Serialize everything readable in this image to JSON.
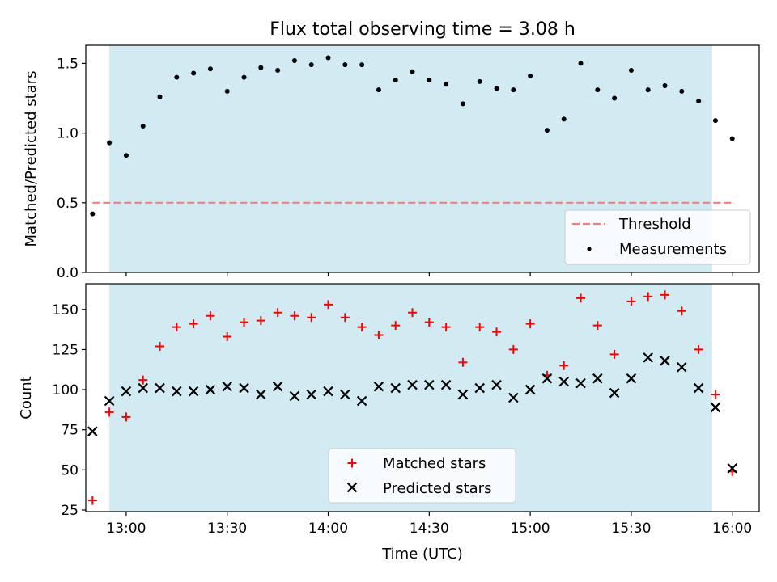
{
  "figure": {
    "title": "Flux total observing time = 3.08 h",
    "xlabel": "Time (UTC)"
  },
  "colors": {
    "shade": "#add8e6",
    "threshold": "#f08080",
    "matched": "#ff0000",
    "predicted": "#000000",
    "measurement": "#000000"
  },
  "chart_data": [
    {
      "type": "scatter",
      "title": "Flux total observing time = 3.08 h",
      "xlabel": "",
      "ylabel": "Matched/Predicted stars",
      "xlim": [
        "12:48",
        "16:08"
      ],
      "ylim": [
        0,
        1.63
      ],
      "yticks": [
        0.0,
        0.5,
        1.0,
        1.5
      ],
      "ytick_labels": [
        "0.0",
        "0.5",
        "1.0",
        "1.5"
      ],
      "xticks": [
        "13:00",
        "13:30",
        "14:00",
        "14:30",
        "15:00",
        "15:30",
        "16:00"
      ],
      "shaded_span": [
        "12:55",
        "15:54"
      ],
      "grid": false,
      "legend_position": "lower right",
      "threshold": {
        "name": "Threshold",
        "y": 0.5,
        "x": [
          "12:50",
          "16:00"
        ]
      },
      "series": [
        {
          "name": "Measurements",
          "x": [
            "12:50",
            "12:55",
            "13:00",
            "13:05",
            "13:10",
            "13:15",
            "13:20",
            "13:25",
            "13:30",
            "13:35",
            "13:40",
            "13:45",
            "13:50",
            "13:55",
            "14:00",
            "14:05",
            "14:10",
            "14:15",
            "14:20",
            "14:25",
            "14:30",
            "14:35",
            "14:40",
            "14:45",
            "14:50",
            "14:55",
            "15:00",
            "15:05",
            "15:10",
            "15:15",
            "15:20",
            "15:25",
            "15:30",
            "15:35",
            "15:40",
            "15:45",
            "15:50",
            "15:55",
            "16:00"
          ],
          "y": [
            0.42,
            0.93,
            0.84,
            1.05,
            1.26,
            1.4,
            1.43,
            1.46,
            1.3,
            1.4,
            1.47,
            1.45,
            1.52,
            1.49,
            1.54,
            1.49,
            1.49,
            1.31,
            1.38,
            1.44,
            1.38,
            1.35,
            1.21,
            1.37,
            1.32,
            1.31,
            1.41,
            1.02,
            1.1,
            1.5,
            1.31,
            1.25,
            1.45,
            1.31,
            1.34,
            1.3,
            1.23,
            1.09,
            0.96
          ]
        }
      ]
    },
    {
      "type": "scatter",
      "title": "",
      "xlabel": "Time (UTC)",
      "ylabel": "Count",
      "xlim": [
        "12:48",
        "16:08"
      ],
      "ylim": [
        24,
        166
      ],
      "yticks": [
        25,
        50,
        75,
        100,
        125,
        150
      ],
      "ytick_labels": [
        "25",
        "50",
        "75",
        "100",
        "125",
        "150"
      ],
      "xticks": [
        "13:00",
        "13:30",
        "14:00",
        "14:30",
        "15:00",
        "15:30",
        "16:00"
      ],
      "shaded_span": [
        "12:55",
        "15:54"
      ],
      "grid": false,
      "legend_position": "lower center",
      "series": [
        {
          "name": "Matched stars",
          "marker": "+",
          "x": [
            "12:50",
            "12:55",
            "13:00",
            "13:05",
            "13:10",
            "13:15",
            "13:20",
            "13:25",
            "13:30",
            "13:35",
            "13:40",
            "13:45",
            "13:50",
            "13:55",
            "14:00",
            "14:05",
            "14:10",
            "14:15",
            "14:20",
            "14:25",
            "14:30",
            "14:35",
            "14:40",
            "14:45",
            "14:50",
            "14:55",
            "15:00",
            "15:05",
            "15:10",
            "15:15",
            "15:20",
            "15:25",
            "15:30",
            "15:35",
            "15:40",
            "15:45",
            "15:50",
            "15:55",
            "16:00"
          ],
          "y": [
            31,
            86,
            83,
            106,
            127,
            139,
            141,
            146,
            133,
            142,
            143,
            148,
            146,
            145,
            153,
            145,
            139,
            134,
            140,
            148,
            142,
            139,
            117,
            139,
            136,
            125,
            141,
            109,
            115,
            157,
            140,
            122,
            155,
            158,
            159,
            149,
            125,
            97,
            49
          ]
        },
        {
          "name": "Predicted stars",
          "marker": "x",
          "x": [
            "12:50",
            "12:55",
            "13:00",
            "13:05",
            "13:10",
            "13:15",
            "13:20",
            "13:25",
            "13:30",
            "13:35",
            "13:40",
            "13:45",
            "13:50",
            "13:55",
            "14:00",
            "14:05",
            "14:10",
            "14:15",
            "14:20",
            "14:25",
            "14:30",
            "14:35",
            "14:40",
            "14:45",
            "14:50",
            "14:55",
            "15:00",
            "15:05",
            "15:10",
            "15:15",
            "15:20",
            "15:25",
            "15:30",
            "15:35",
            "15:40",
            "15:45",
            "15:50",
            "15:55",
            "16:00"
          ],
          "y": [
            74,
            93,
            99,
            101,
            101,
            99,
            99,
            100,
            102,
            101,
            97,
            102,
            96,
            97,
            99,
            97,
            93,
            102,
            101,
            103,
            103,
            103,
            97,
            101,
            103,
            95,
            100,
            107,
            105,
            104,
            107,
            98,
            107,
            120,
            118,
            114,
            101,
            89,
            51
          ]
        }
      ]
    }
  ]
}
